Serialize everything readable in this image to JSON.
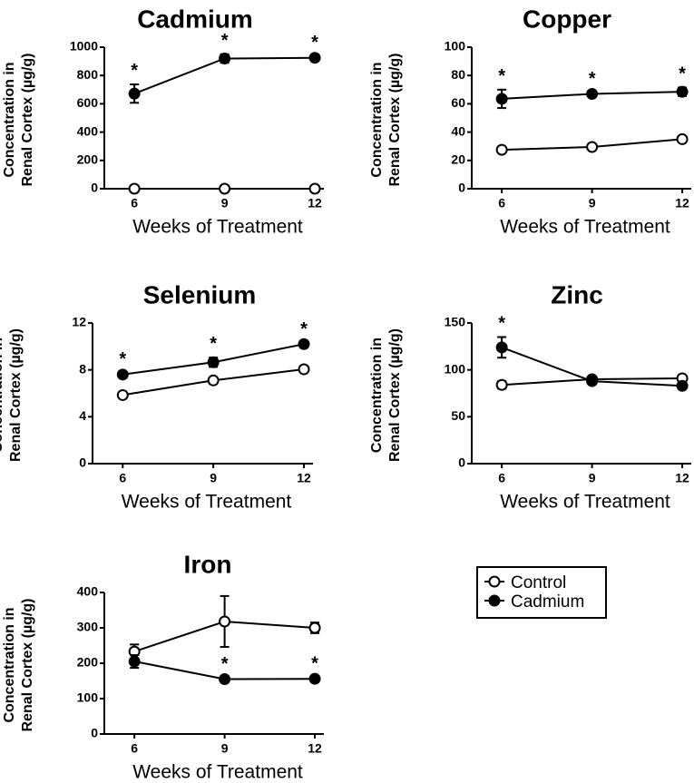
{
  "legend": {
    "control_label": "Control",
    "cadmium_label": "Cadmium"
  },
  "chart_data": [
    {
      "type": "line",
      "title": "Cadmium",
      "xlabel": "Weeks of Treatment",
      "ylabel_line1": "Concentration in",
      "ylabel_line2": "Renal Cortex (µg/g)",
      "x": [
        6,
        9,
        12
      ],
      "xticks": [
        "6",
        "9",
        "12"
      ],
      "xlim": [
        5,
        12.3
      ],
      "ylim": [
        0,
        1000
      ],
      "yticks": [
        "0",
        "200",
        "400",
        "600",
        "800",
        "1000"
      ],
      "series": [
        {
          "name": "Control",
          "values": [
            0,
            0,
            0
          ],
          "errors": [
            0,
            0,
            0
          ]
        },
        {
          "name": "Cadmium",
          "values": [
            672,
            920,
            925
          ],
          "errors": [
            65,
            30,
            10
          ]
        }
      ],
      "significance": [
        "*",
        "*",
        "*"
      ]
    },
    {
      "type": "line",
      "title": "Copper",
      "xlabel": "Weeks of Treatment",
      "ylabel_line1": "Concentration in",
      "ylabel_line2": "Renal Cortex (µg/g)",
      "x": [
        6,
        9,
        12
      ],
      "xticks": [
        "6",
        "9",
        "12"
      ],
      "xlim": [
        5,
        12.3
      ],
      "ylim": [
        0,
        100
      ],
      "yticks": [
        "0",
        "20",
        "40",
        "60",
        "80",
        "100"
      ],
      "series": [
        {
          "name": "Control",
          "values": [
            27.5,
            29.5,
            35
          ],
          "errors": [
            0.5,
            0.5,
            0.5
          ]
        },
        {
          "name": "Cadmium",
          "values": [
            63.5,
            67,
            68.5
          ],
          "errors": [
            6.5,
            1,
            3
          ]
        }
      ],
      "significance": [
        "*",
        "*",
        "*"
      ]
    },
    {
      "type": "line",
      "title": "Selenium",
      "xlabel": "Weeks of Treatment",
      "ylabel_line1": "Concentration in",
      "ylabel_line2": "Renal Cortex (µg/g)",
      "x": [
        6,
        9,
        12
      ],
      "xticks": [
        "6",
        "9",
        "12"
      ],
      "xlim": [
        5,
        12.3
      ],
      "ylim": [
        0,
        12
      ],
      "yticks": [
        "0",
        "4",
        "8",
        "12"
      ],
      "series": [
        {
          "name": "Control",
          "values": [
            5.85,
            7.1,
            8.05
          ],
          "errors": [
            0.1,
            0.15,
            0.1
          ]
        },
        {
          "name": "Cadmium",
          "values": [
            7.6,
            8.65,
            10.2
          ],
          "errors": [
            0.15,
            0.4,
            0.1
          ]
        }
      ],
      "significance": [
        "*",
        "*",
        "*"
      ]
    },
    {
      "type": "line",
      "title": "Zinc",
      "xlabel": "Weeks of Treatment",
      "ylabel_line1": "Concentration in",
      "ylabel_line2": "Renal Cortex (µg/g)",
      "x": [
        6,
        9,
        12
      ],
      "xticks": [
        "6",
        "9",
        "12"
      ],
      "xlim": [
        5,
        12.3
      ],
      "ylim": [
        0,
        150
      ],
      "yticks": [
        "0",
        "50",
        "100",
        "150"
      ],
      "series": [
        {
          "name": "Control",
          "values": [
            84,
            90,
            91
          ],
          "errors": [
            4,
            2,
            2
          ]
        },
        {
          "name": "Cadmium",
          "values": [
            124,
            88,
            83
          ],
          "errors": [
            11,
            2,
            2
          ]
        }
      ],
      "significance": [
        "*",
        "",
        ""
      ]
    },
    {
      "type": "line",
      "title": "Iron",
      "xlabel": "Weeks of Treatment",
      "ylabel_line1": "Concentration in",
      "ylabel_line2": "Renal Cortex (µg/g)",
      "x": [
        6,
        9,
        12
      ],
      "xticks": [
        "6",
        "9",
        "12"
      ],
      "xlim": [
        5,
        12.3
      ],
      "ylim": [
        0,
        400
      ],
      "yticks": [
        "0",
        "100",
        "200",
        "300",
        "400"
      ],
      "series": [
        {
          "name": "Control",
          "values": [
            233,
            318,
            300
          ],
          "errors": [
            20,
            72,
            15
          ]
        },
        {
          "name": "Cadmium",
          "values": [
            205,
            155,
            156
          ],
          "errors": [
            18,
            4,
            4
          ]
        }
      ],
      "significance": [
        "",
        "*",
        "*"
      ]
    }
  ]
}
